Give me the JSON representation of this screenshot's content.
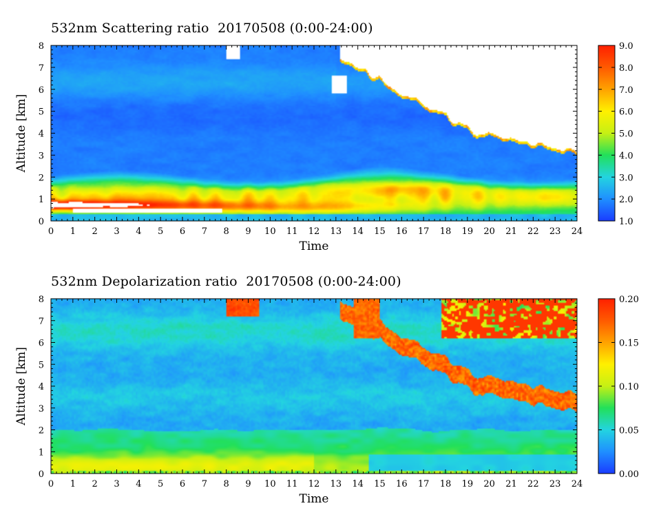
{
  "chart_data": [
    {
      "type": "heatmap",
      "title": "532nm Scattering ratio  20170508 (0:00-24:00)",
      "xlabel": "Time",
      "ylabel": "Altitude [km]",
      "xlim": [
        0,
        24
      ],
      "ylim": [
        0,
        8
      ],
      "x_ticks": [
        "0",
        "1",
        "2",
        "3",
        "4",
        "5",
        "6",
        "7",
        "8",
        "9",
        "10",
        "11",
        "12",
        "13",
        "14",
        "15",
        "16",
        "17",
        "18",
        "19",
        "20",
        "21",
        "22",
        "23",
        "24"
      ],
      "y_ticks": [
        "0",
        "1",
        "2",
        "3",
        "4",
        "5",
        "6",
        "7",
        "8"
      ],
      "colorbar": {
        "range": [
          1.0,
          9.0
        ],
        "ticks": [
          "1.0",
          "2.0",
          "3.0",
          "4.0",
          "5.0",
          "6.0",
          "7.0",
          "8.0",
          "9.0"
        ],
        "colors": [
          "#1a3cff",
          "#1f8fff",
          "#23d4e0",
          "#22e05a",
          "#c6f014",
          "#fff000",
          "#ffa200",
          "#ff5a00",
          "#ff2000"
        ]
      },
      "features": [
        {
          "name": "boundary layer",
          "time": [
            0,
            24
          ],
          "altitude": [
            0.2,
            1.8
          ],
          "value_range": [
            3.0,
            9.0
          ]
        },
        {
          "name": "cloud base",
          "time": [
            12.5,
            24
          ],
          "altitude": [
            3.0,
            8.0
          ],
          "value": "above 9.0 (white)"
        }
      ]
    },
    {
      "type": "heatmap",
      "title": "532nm Depolarization ratio  20170508 (0:00-24:00)",
      "xlabel": "Time",
      "ylabel": "Altitude [km]",
      "xlim": [
        0,
        24
      ],
      "ylim": [
        0,
        8
      ],
      "x_ticks": [
        "0",
        "1",
        "2",
        "3",
        "4",
        "5",
        "6",
        "7",
        "8",
        "9",
        "10",
        "11",
        "12",
        "13",
        "14",
        "15",
        "16",
        "17",
        "18",
        "19",
        "20",
        "21",
        "22",
        "23",
        "24"
      ],
      "y_ticks": [
        "0",
        "1",
        "2",
        "3",
        "4",
        "5",
        "6",
        "7",
        "8"
      ],
      "colorbar": {
        "range": [
          0.0,
          0.2
        ],
        "ticks": [
          "0.00",
          "0.05",
          "0.10",
          "0.15",
          "0.20"
        ],
        "colors": [
          "#1a3cff",
          "#1f8fff",
          "#23d4e0",
          "#22e05a",
          "#c6f014",
          "#fff000",
          "#ffa200",
          "#ff5a00",
          "#ff2000"
        ]
      },
      "features": [
        {
          "name": "boundary layer",
          "time": [
            0,
            24
          ],
          "altitude": [
            0.0,
            2.0
          ],
          "value_range": [
            0.05,
            0.12
          ]
        },
        {
          "name": "cloud layer",
          "time": [
            15,
            24
          ],
          "altitude": [
            3.0,
            8.0
          ],
          "value_range": [
            0.15,
            0.2
          ]
        }
      ]
    }
  ]
}
